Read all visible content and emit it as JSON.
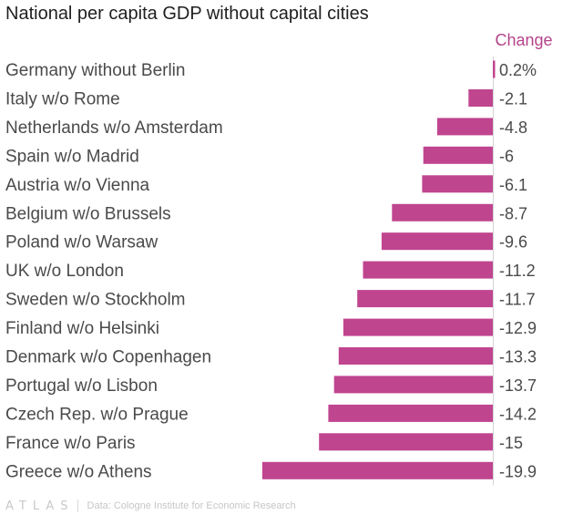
{
  "chart_data": {
    "type": "bar",
    "orientation": "horizontal",
    "title": "National per capita GDP without capital cities",
    "value_header": "Change",
    "categories": [
      "Germany without Berlin",
      "Italy w/o Rome",
      "Netherlands w/o Amsterdam",
      "Spain w/o Madrid",
      "Austria w/o Vienna",
      "Belgium w/o Brussels",
      "Poland w/o Warsaw",
      "UK w/o London",
      "Sweden w/o Stockholm",
      "Finland w/o Helsinki",
      "Denmark w/o Copenhagen",
      "Portugal w/o Lisbon",
      "Czech Rep. w/o Prague",
      "France w/o Paris",
      "Greece w/o Athens"
    ],
    "values": [
      0.2,
      -2.1,
      -4.8,
      -6,
      -6.1,
      -8.7,
      -9.6,
      -11.2,
      -11.7,
      -12.9,
      -13.3,
      -13.7,
      -14.2,
      -15,
      -19.9
    ],
    "value_labels": [
      "0.2%",
      "-2.1",
      "-4.8",
      "-6",
      "-6.1",
      "-8.7",
      "-9.6",
      "-11.2",
      "-11.7",
      "-12.9",
      "-13.3",
      "-13.7",
      "-14.2",
      "-15",
      "-19.9"
    ],
    "xlim": [
      -19.9,
      0.2
    ],
    "grid": false,
    "legend": "none",
    "colors": {
      "bar": "#c0458f",
      "header": "#b4448a",
      "label": "#4a4a4a",
      "axis": "#d4d4d4"
    }
  },
  "footer": {
    "logo": "ATLAS",
    "source": "Data: Cologne Institute for Economic Research"
  }
}
